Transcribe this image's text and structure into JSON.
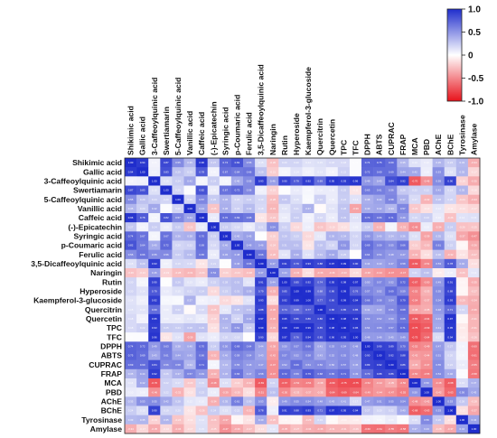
{
  "chart_data": {
    "type": "heatmap",
    "title": "",
    "labels": [
      "Shikimic acid",
      "Gallic acid",
      "3-Caffeoylquinic acid",
      "Swertiamarin",
      "5-Caffeoylquinic acid",
      "Vanillic acid",
      "Caffeic acid",
      "(-)-Epicatechin",
      "Syringic acid",
      "p-Coumaric acid",
      "Ferulic acid",
      "3,5-Dicaffeoylquinic acid",
      "Naringin",
      "Rutin",
      "Hyperoside",
      "Kaempferol-3-glucoside",
      "Quercitrin",
      "Quercetin",
      "TPC",
      "TFC",
      "DPPH",
      "ABTS",
      "CUPRAC",
      "FRAP",
      "MCA",
      "PBD",
      "AChE",
      "BChE",
      "Tyrosinase",
      "Amylase"
    ],
    "values": [
      [
        1.0,
        0.94,
        0.06,
        0.87,
        0.55,
        0.35,
        0.96,
        0.27,
        0.74,
        0.82,
        0.55,
        0.15,
        -0.26,
        0.2,
        0.2,
        0.14,
        0.15,
        0.18,
        0.18,
        0.02,
        0.74,
        0.75,
        0.69,
        0.35,
        0.14,
        0.1,
        0.35,
        0.24,
        0.33,
        -0.34
      ],
      [
        0.94,
        1.0,
        0.07,
        0.83,
        0.29,
        0.23,
        0.78,
        0.06,
        0.67,
        0.64,
        0.66,
        0.29,
        -0.21,
        0.05,
        0.14,
        0.07,
        0.13,
        0.06,
        0.22,
        0.02,
        0.72,
        0.69,
        0.69,
        0.44,
        0.42,
        0.08,
        0.53,
        0.15,
        0.35,
        -0.17
      ],
      [
        0.06,
        0.07,
        1.0,
        0.15,
        0.24,
        0.42,
        0.05,
        0.24,
        0.05,
        0.4,
        0.55,
        0.93,
        0.46,
        0.9,
        0.79,
        0.92,
        0.69,
        0.95,
        0.93,
        0.96,
        0.49,
        0.43,
        0.84,
        0.92,
        -0.7,
        -0.46,
        0.55,
        0.9,
        -0.19,
        -0.35
      ],
      [
        0.87,
        0.83,
        0.15,
        1.0,
        0.2,
        0.02,
        0.82,
        0.09,
        0.67,
        0.72,
        0.56,
        0.07,
        -0.19,
        0.01,
        0.1,
        0.04,
        0.09,
        0.09,
        0.25,
        -0.11,
        0.63,
        0.61,
        0.56,
        0.26,
        0.22,
        0.22,
        0.42,
        0.19,
        0.35,
        -0.16
      ],
      [
        0.55,
        0.29,
        0.24,
        0.2,
        1.0,
        0.2,
        0.57,
        0.25,
        0.36,
        0.2,
        0.24,
        0.19,
        -0.28,
        0.26,
        0.15,
        0.03,
        0.22,
        0.09,
        0.24,
        0.14,
        0.38,
        0.44,
        0.58,
        0.37,
        0.17,
        -0.32,
        0.28,
        0.2,
        -0.24,
        -0.34
      ],
      [
        0.35,
        0.23,
        0.42,
        0.02,
        0.2,
        1.0,
        0.44,
        -0.25,
        0.38,
        0.22,
        0.32,
        0.18,
        -0.31,
        0.13,
        0.21,
        0.37,
        -0.02,
        0.13,
        0.28,
        -0.39,
        0.4,
        0.42,
        0.34,
        0.57,
        -0.23,
        -0.13,
        0.12,
        -0.11,
        -0.14,
        -0.17
      ],
      [
        0.96,
        0.78,
        0.05,
        0.82,
        0.57,
        0.44,
        1.0,
        0.1,
        0.7,
        0.69,
        0.65,
        -0.11,
        -0.24,
        0.09,
        0.24,
        0.06,
        0.18,
        0.09,
        0.29,
        0.14,
        0.7,
        0.66,
        0.71,
        0.49,
        0.19,
        0.23,
        0.1,
        -0.26,
        0.14,
        0.15
      ],
      [
        0.27,
        0.06,
        0.24,
        0.09,
        0.25,
        -0.25,
        0.1,
        1.0,
        0.23,
        0.18,
        0.09,
        0.21,
        0.54,
        0.22,
        -0.16,
        0.08,
        -0.25,
        -0.19,
        -0.13,
        0.09,
        0.24,
        -0.32,
        0.05,
        -0.33,
        -0.48,
        0.09,
        -0.34,
        0.24,
        -0.26,
        -0.25
      ],
      [
        0.74,
        0.67,
        0.05,
        0.67,
        0.36,
        0.38,
        0.7,
        0.23,
        1.0,
        0.4,
        0.45,
        0.01,
        -0.2,
        0.28,
        0.23,
        -0.16,
        0.11,
        0.36,
        0.34,
        0.2,
        0.5,
        0.4,
        0.34,
        0.36,
        0.15,
        -0.39,
        0.35,
        0.15,
        -0.37,
        -0.47
      ],
      [
        0.82,
        0.64,
        0.4,
        0.72,
        0.2,
        0.22,
        0.69,
        0.18,
        0.4,
        1.0,
        0.48,
        0.46,
        -0.24,
        0.31,
        0.31,
        -0.11,
        0.28,
        0.2,
        0.51,
        0.19,
        0.69,
        0.59,
        0.55,
        0.66,
        -0.21,
        -0.3,
        0.61,
        0.22,
        -0.04,
        -0.36
      ],
      [
        0.55,
        0.66,
        0.55,
        0.56,
        0.24,
        0.32,
        0.65,
        0.09,
        0.45,
        0.48,
        1.0,
        0.66,
        -0.28,
        0.13,
        0.39,
        0.14,
        0.31,
        0.42,
        0.25,
        -0.01,
        0.64,
        0.54,
        0.48,
        0.47,
        -0.32,
        -0.14,
        0.3,
        -0.32,
        -0.12,
        -0.27
      ],
      [
        0.15,
        0.29,
        0.93,
        0.07,
        0.19,
        0.18,
        -0.11,
        0.21,
        0.01,
        0.46,
        0.66,
        1.0,
        0.47,
        0.91,
        0.79,
        0.93,
        0.88,
        0.97,
        0.99,
        0.9,
        0.44,
        0.43,
        0.47,
        0.58,
        -0.69,
        -0.51,
        0.53,
        0.78,
        0.4,
        -0.14
      ],
      [
        -0.26,
        -0.21,
        0.46,
        -0.19,
        -0.28,
        -0.31,
        -0.24,
        0.54,
        -0.2,
        -0.24,
        -0.28,
        0.47,
        1.0,
        0.44,
        -0.33,
        -0.14,
        -0.36,
        -0.36,
        -0.33,
        -0.16,
        -0.38,
        -0.42,
        -0.47,
        -0.47,
        0.21,
        0.3,
        -0.08,
        0.08,
        -0.26,
        0.12
      ],
      [
        0.2,
        0.05,
        0.9,
        0.01,
        0.26,
        0.13,
        0.09,
        0.22,
        0.28,
        0.31,
        0.13,
        0.91,
        0.44,
        1.0,
        0.85,
        0.92,
        0.74,
        0.95,
        0.98,
        0.97,
        0.5,
        0.57,
        0.52,
        0.72,
        -0.67,
        -0.5,
        0.49,
        0.91,
        -0.05,
        -0.35
      ],
      [
        0.2,
        0.14,
        0.79,
        0.1,
        0.15,
        0.21,
        0.24,
        -0.16,
        0.23,
        0.31,
        0.39,
        0.79,
        -0.33,
        0.85,
        1.0,
        0.99,
        0.68,
        0.86,
        0.99,
        0.76,
        0.57,
        0.52,
        0.69,
        0.59,
        -0.52,
        -0.33,
        0.55,
        0.88,
        -0.04,
        -0.27
      ],
      [
        0.14,
        0.07,
        0.92,
        0.04,
        0.03,
        0.37,
        0.06,
        0.08,
        -0.16,
        -0.11,
        0.14,
        0.93,
        -0.14,
        0.92,
        0.99,
        1.0,
        0.77,
        0.86,
        0.99,
        0.94,
        0.66,
        0.58,
        0.54,
        0.79,
        -0.54,
        -0.37,
        0.54,
        0.93,
        -0.29,
        -0.34
      ],
      [
        0.15,
        0.13,
        0.69,
        0.09,
        0.22,
        -0.02,
        0.18,
        -0.25,
        0.11,
        0.28,
        0.31,
        0.88,
        -0.36,
        0.74,
        0.68,
        0.77,
        1.0,
        0.86,
        0.85,
        0.85,
        0.41,
        0.43,
        0.56,
        0.68,
        -0.38,
        -0.35,
        0.48,
        0.71,
        0.19,
        -0.36
      ],
      [
        0.18,
        0.06,
        0.95,
        0.09,
        0.09,
        0.13,
        0.09,
        -0.19,
        0.36,
        0.2,
        0.42,
        0.97,
        -0.36,
        0.95,
        0.86,
        0.86,
        0.86,
        1.0,
        0.98,
        0.96,
        0.53,
        0.52,
        0.5,
        0.65,
        -0.69,
        -0.64,
        0.43,
        0.97,
        -0.03,
        -0.31
      ],
      [
        0.18,
        0.22,
        0.93,
        0.25,
        0.24,
        0.28,
        0.29,
        -0.13,
        0.34,
        0.51,
        0.25,
        0.99,
        -0.33,
        0.98,
        0.99,
        0.99,
        0.85,
        0.98,
        1.0,
        0.95,
        0.54,
        0.55,
        0.57,
        0.71,
        -0.75,
        -0.69,
        0.41,
        0.95,
        -0.09,
        -0.31
      ],
      [
        0.02,
        0.02,
        0.96,
        -0.11,
        0.14,
        -0.39,
        0.14,
        0.09,
        0.2,
        0.19,
        -0.01,
        0.9,
        -0.16,
        0.97,
        0.76,
        0.94,
        0.85,
        0.96,
        0.95,
        1.0,
        0.48,
        0.48,
        0.45,
        0.49,
        -0.75,
        -0.64,
        0.17,
        0.94,
        -0.08,
        -0.26
      ],
      [
        0.74,
        0.72,
        0.49,
        0.63,
        0.38,
        0.4,
        0.7,
        0.24,
        0.5,
        0.69,
        0.64,
        0.44,
        -0.38,
        0.5,
        0.57,
        0.66,
        0.41,
        0.53,
        0.54,
        0.48,
        1.0,
        0.9,
        0.89,
        0.7,
        -0.52,
        -0.49,
        0.47,
        0.27,
        0.06,
        -0.6
      ],
      [
        0.75,
        0.69,
        0.43,
        0.61,
        0.44,
        0.42,
        0.66,
        -0.32,
        0.4,
        0.59,
        0.54,
        0.43,
        -0.42,
        0.57,
        0.52,
        0.58,
        0.43,
        0.52,
        0.55,
        0.48,
        0.9,
        1.0,
        0.92,
        0.88,
        -0.42,
        -0.44,
        0.51,
        0.2,
        0.05,
        -0.61
      ],
      [
        0.69,
        0.69,
        0.84,
        0.56,
        0.58,
        0.34,
        0.71,
        0.05,
        0.34,
        0.55,
        0.48,
        0.47,
        -0.47,
        0.52,
        0.69,
        0.54,
        0.56,
        0.5,
        0.57,
        0.45,
        0.89,
        0.92,
        1.0,
        0.86,
        -0.35,
        -0.47,
        0.55,
        0.22,
        0.09,
        -0.55
      ],
      [
        0.35,
        0.44,
        0.92,
        0.26,
        0.37,
        0.57,
        0.49,
        -0.33,
        0.36,
        0.66,
        0.47,
        0.58,
        -0.47,
        0.72,
        0.59,
        0.79,
        0.68,
        0.65,
        0.71,
        0.49,
        0.7,
        0.88,
        0.86,
        1.0,
        -0.5,
        -0.55,
        0.54,
        0.4,
        0.02,
        -0.58
      ],
      [
        0.14,
        0.42,
        -0.7,
        0.22,
        0.17,
        -0.23,
        0.19,
        -0.48,
        0.15,
        -0.21,
        -0.32,
        -0.69,
        0.21,
        -0.67,
        -0.52,
        -0.54,
        -0.38,
        -0.69,
        -0.75,
        -0.75,
        -0.52,
        -0.42,
        -0.35,
        -0.5,
        1.0,
        0.5,
        -0.48,
        -0.68,
        0.16,
        0.37
      ],
      [
        0.1,
        0.08,
        -0.46,
        0.22,
        -0.32,
        -0.13,
        0.23,
        0.09,
        -0.39,
        -0.3,
        -0.14,
        -0.51,
        0.3,
        -0.5,
        -0.33,
        -0.37,
        -0.35,
        -0.64,
        -0.69,
        -0.64,
        -0.49,
        -0.44,
        -0.47,
        -0.55,
        0.5,
        1.0,
        -0.42,
        -0.63,
        0.56,
        0.43
      ],
      [
        0.35,
        0.53,
        0.55,
        0.42,
        0.28,
        0.12,
        0.1,
        -0.34,
        0.35,
        0.61,
        0.3,
        0.53,
        -0.08,
        0.49,
        0.55,
        0.54,
        0.48,
        0.43,
        0.41,
        0.17,
        0.47,
        0.51,
        0.55,
        0.54,
        -0.48,
        -0.42,
        1.0,
        0.53,
        0.26,
        -0.28
      ],
      [
        0.24,
        0.15,
        0.9,
        0.19,
        0.2,
        -0.11,
        -0.26,
        0.24,
        0.15,
        0.22,
        -0.32,
        0.78,
        0.08,
        0.91,
        0.88,
        0.93,
        0.71,
        0.97,
        0.95,
        0.94,
        0.27,
        0.2,
        0.22,
        0.4,
        -0.68,
        -0.63,
        0.53,
        1.0,
        -0.13,
        -0.37
      ],
      [
        0.33,
        0.35,
        -0.19,
        0.35,
        -0.24,
        -0.14,
        0.14,
        -0.26,
        -0.37,
        -0.04,
        -0.12,
        0.4,
        -0.26,
        -0.05,
        -0.04,
        -0.29,
        0.19,
        -0.03,
        -0.09,
        -0.08,
        0.06,
        0.05,
        0.09,
        0.02,
        0.16,
        0.56,
        0.26,
        -0.13,
        1.0,
        0.44
      ],
      [
        -0.34,
        -0.17,
        -0.35,
        -0.16,
        -0.34,
        -0.17,
        0.15,
        -0.25,
        -0.47,
        -0.36,
        -0.27,
        -0.14,
        0.12,
        -0.35,
        -0.27,
        -0.34,
        -0.36,
        -0.31,
        -0.31,
        -0.26,
        -0.6,
        -0.61,
        -0.55,
        -0.58,
        0.37,
        0.43,
        -0.28,
        -0.37,
        0.44,
        1.0
      ]
    ],
    "vmin": -1.0,
    "vmax": 1.0,
    "colorbar": {
      "ticks": [
        "1.0",
        "0.5",
        "0",
        "-0.5",
        "-1.0"
      ],
      "tick_values": [
        1.0,
        0.5,
        0,
        -0.5,
        -1.0
      ],
      "colors": {
        "high": "#1f2dcc",
        "mid": "#ffffff",
        "low": "#e8121b"
      }
    },
    "legend_placement": "top-right"
  }
}
